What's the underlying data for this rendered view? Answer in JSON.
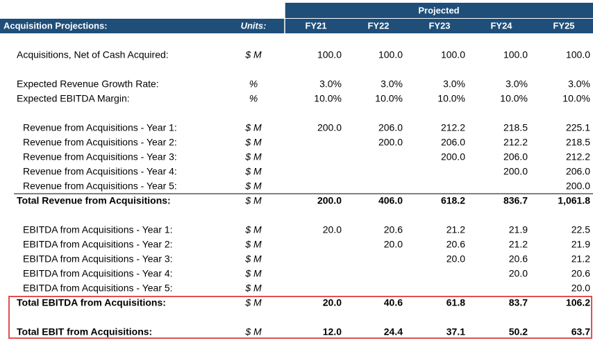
{
  "header": {
    "title": "Acquisition Projections:",
    "units": "Units:",
    "group": "Projected",
    "columns": [
      "FY21",
      "FY22",
      "FY23",
      "FY24",
      "FY25"
    ]
  },
  "rows": [
    {
      "label": "Acquisitions, Net of Cash Acquired:",
      "units": "$ M",
      "values": [
        "100.0",
        "100.0",
        "100.0",
        "100.0",
        "100.0"
      ]
    },
    {
      "label": "Expected Revenue Growth Rate:",
      "units": "%",
      "values": [
        "3.0%",
        "3.0%",
        "3.0%",
        "3.0%",
        "3.0%"
      ]
    },
    {
      "label": "Expected EBITDA Margin:",
      "units": "%",
      "values": [
        "10.0%",
        "10.0%",
        "10.0%",
        "10.0%",
        "10.0%"
      ]
    },
    {
      "label": "Revenue from Acquisitions - Year 1:",
      "units": "$ M",
      "values": [
        "200.0",
        "206.0",
        "212.2",
        "218.5",
        "225.1"
      ]
    },
    {
      "label": "Revenue from Acquisitions - Year 2:",
      "units": "$ M",
      "values": [
        null,
        "200.0",
        "206.0",
        "212.2",
        "218.5"
      ]
    },
    {
      "label": "Revenue from Acquisitions - Year 3:",
      "units": "$ M",
      "values": [
        null,
        null,
        "200.0",
        "206.0",
        "212.2"
      ]
    },
    {
      "label": "Revenue from Acquisitions - Year 4:",
      "units": "$ M",
      "values": [
        null,
        null,
        null,
        "200.0",
        "206.0"
      ]
    },
    {
      "label": "Revenue from Acquisitions - Year 5:",
      "units": "$ M",
      "values": [
        null,
        null,
        null,
        null,
        "200.0"
      ]
    },
    {
      "label": "Total Revenue from Acquisitions:",
      "units": "$ M",
      "values": [
        "200.0",
        "406.0",
        "618.2",
        "836.7",
        "1,061.8"
      ]
    },
    {
      "label": "EBITDA from Acquisitions - Year 1:",
      "units": "$ M",
      "values": [
        "20.0",
        "20.6",
        "21.2",
        "21.9",
        "22.5"
      ]
    },
    {
      "label": "EBITDA from Acquisitions - Year 2:",
      "units": "$ M",
      "values": [
        null,
        "20.0",
        "20.6",
        "21.2",
        "21.9"
      ]
    },
    {
      "label": "EBITDA from Acquisitions - Year 3:",
      "units": "$ M",
      "values": [
        null,
        null,
        "20.0",
        "20.6",
        "21.2"
      ]
    },
    {
      "label": "EBITDA from Acquisitions - Year 4:",
      "units": "$ M",
      "values": [
        null,
        null,
        null,
        "20.0",
        "20.6"
      ]
    },
    {
      "label": "EBITDA from Acquisitions - Year 5:",
      "units": "$ M",
      "values": [
        null,
        null,
        null,
        null,
        "20.0"
      ]
    },
    {
      "label": "Total EBITDA from Acquisitions:",
      "units": "$ M",
      "values": [
        "20.0",
        "40.6",
        "61.8",
        "83.7",
        "106.2"
      ]
    },
    {
      "label": "Total EBIT from Acquisitions:",
      "units": "$ M",
      "values": [
        "12.0",
        "24.4",
        "37.1",
        "50.2",
        "63.7"
      ]
    }
  ]
}
